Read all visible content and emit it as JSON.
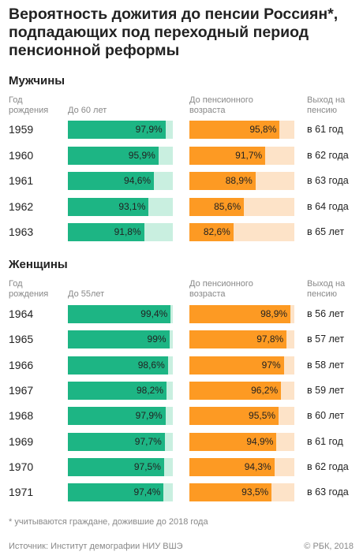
{
  "title": "Вероятность дожития до пенсии Россиян*, подпадающих под переходный период пенсионной реформы",
  "colors": {
    "green": "#1db584",
    "green_light": "#c9efe0",
    "orange": "#fd9a23",
    "orange_light": "#fde3c8"
  },
  "men": {
    "section_label": "Мужчины",
    "col_year": "Год рождения",
    "col_left": "До 60 лет",
    "col_right": "До пенсионного возраста",
    "col_ret": "Выход на пенсию"
  },
  "women": {
    "section_label": "Женщины",
    "col_year": "Год рождения",
    "col_left": "До 55лет",
    "col_right": "До пенсионного возраста",
    "col_ret": "Выход на пенсию"
  },
  "footnote": "* учитываются граждане, дожившие до 2018 года",
  "source": "Источник: Институт демографии НИУ ВШЭ",
  "credit": "© РБК, 2018",
  "chart_data": [
    {
      "type": "bar",
      "group": "Мужчины",
      "categories": [
        "1959",
        "1960",
        "1961",
        "1962",
        "1963"
      ],
      "series": [
        {
          "name": "До 60 лет",
          "values": [
            97.9,
            95.9,
            94.6,
            93.1,
            91.8
          ],
          "labels": [
            "97,9%",
            "95,9%",
            "94,6%",
            "93,1%",
            "91,8%"
          ]
        },
        {
          "name": "До пенсионного возраста",
          "values": [
            95.8,
            91.7,
            88.9,
            85.6,
            82.6
          ],
          "labels": [
            "95,8%",
            "91,7%",
            "88,9%",
            "85,6%",
            "82,6%"
          ]
        }
      ],
      "retirement": [
        "в 61 год",
        "в 62 года",
        "в 63 года",
        "в 64 года",
        "в 65 лет"
      ],
      "xlim": [
        0,
        100
      ]
    },
    {
      "type": "bar",
      "group": "Женщины",
      "categories": [
        "1964",
        "1965",
        "1966",
        "1967",
        "1968",
        "1969",
        "1970",
        "1971"
      ],
      "series": [
        {
          "name": "До 55лет",
          "values": [
            99.4,
            99,
            98.6,
            98.2,
            97.9,
            97.7,
            97.5,
            97.4
          ],
          "labels": [
            "99,4%",
            "99%",
            "98,6%",
            "98,2%",
            "97,9%",
            "97,7%",
            "97,5%",
            "97,4%"
          ]
        },
        {
          "name": "До пенсионного возраста",
          "values": [
            98.9,
            97.8,
            97,
            96.2,
            95.5,
            94.9,
            94.3,
            93.5
          ],
          "labels": [
            "98,9%",
            "97,8%",
            "97%",
            "96,2%",
            "95,5%",
            "94,9%",
            "94,3%",
            "93,5%"
          ]
        }
      ],
      "retirement": [
        "в 56 лет",
        "в 57 лет",
        "в 58 лет",
        "в 59 лет",
        "в 60 лет",
        "в 61 год",
        "в 62 года",
        "в 63 года"
      ],
      "xlim": [
        0,
        100
      ]
    }
  ]
}
